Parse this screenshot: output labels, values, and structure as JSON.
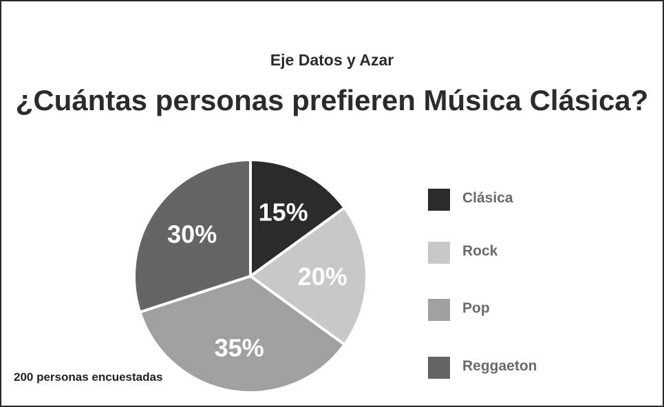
{
  "header": {
    "subtitle": "Eje Datos y Azar",
    "title": "¿Cuántas personas prefieren Música Clásica?"
  },
  "footnote": "200 personas encuestadas",
  "chart_data": {
    "type": "pie",
    "categories": [
      "Clásica",
      "Rock",
      "Pop",
      "Reggaeton"
    ],
    "values": [
      15,
      20,
      35,
      30
    ],
    "labels": [
      "15%",
      "20%",
      "35%",
      "30%"
    ],
    "colors": [
      "#2b2b2b",
      "#c8c8c8",
      "#a0a0a0",
      "#656565"
    ],
    "start_angle_deg": 0,
    "direction": "clockwise",
    "legend_placement": "right"
  }
}
